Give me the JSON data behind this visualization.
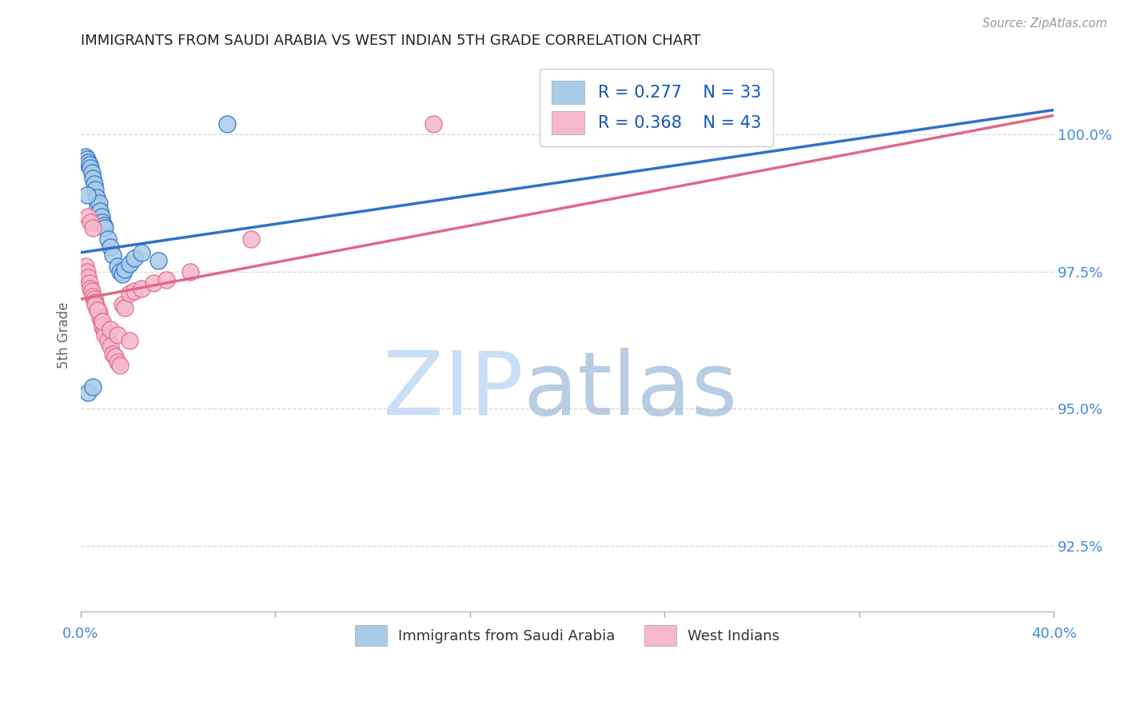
{
  "title": "IMMIGRANTS FROM SAUDI ARABIA VS WEST INDIAN 5TH GRADE CORRELATION CHART",
  "source": "Source: ZipAtlas.com",
  "ylabel": "5th Grade",
  "ytick_labels": [
    "92.5%",
    "95.0%",
    "97.5%",
    "100.0%"
  ],
  "ytick_values": [
    92.5,
    95.0,
    97.5,
    100.0
  ],
  "xlim": [
    0.0,
    40.0
  ],
  "ylim": [
    91.3,
    101.4
  ],
  "color_saudi": "#a8cce8",
  "color_west": "#f5b8cc",
  "line_color_saudi": "#3070c8",
  "line_color_west": "#e06888",
  "background_color": "#ffffff",
  "grid_color": "#d8d8d8",
  "title_color": "#222222",
  "source_color": "#999999",
  "axis_label_color": "#4488dd",
  "saudi_x": [
    0.15,
    0.2,
    0.25,
    0.3,
    0.35,
    0.4,
    0.45,
    0.5,
    0.55,
    0.6,
    0.65,
    0.7,
    0.75,
    0.8,
    0.85,
    0.9,
    0.95,
    1.0,
    1.1,
    1.2,
    1.3,
    1.5,
    1.6,
    1.7,
    1.8,
    2.0,
    2.2,
    2.5,
    3.2,
    0.25,
    0.3,
    0.5,
    6.0
  ],
  "saudi_y": [
    99.5,
    99.6,
    99.55,
    99.5,
    99.45,
    99.4,
    99.3,
    99.2,
    99.1,
    99.0,
    98.85,
    98.7,
    98.75,
    98.6,
    98.5,
    98.4,
    98.35,
    98.3,
    98.1,
    97.95,
    97.8,
    97.6,
    97.5,
    97.45,
    97.55,
    97.65,
    97.75,
    97.85,
    97.7,
    98.9,
    95.3,
    95.4,
    100.2
  ],
  "west_x": [
    0.1,
    0.2,
    0.25,
    0.3,
    0.35,
    0.4,
    0.45,
    0.5,
    0.55,
    0.6,
    0.65,
    0.7,
    0.75,
    0.8,
    0.85,
    0.9,
    0.95,
    1.0,
    1.1,
    1.2,
    1.3,
    1.4,
    1.5,
    1.6,
    1.7,
    1.8,
    2.0,
    2.2,
    2.5,
    3.0,
    3.5,
    4.5,
    7.0,
    14.5,
    0.3,
    0.4,
    0.5,
    0.6,
    0.7,
    0.9,
    1.2,
    1.5,
    2.0
  ],
  "west_y": [
    97.5,
    97.6,
    97.5,
    97.4,
    97.3,
    97.2,
    97.15,
    97.05,
    97.0,
    96.95,
    96.85,
    96.8,
    96.75,
    96.65,
    96.6,
    96.5,
    96.45,
    96.35,
    96.25,
    96.15,
    96.0,
    95.95,
    95.85,
    95.8,
    96.9,
    96.85,
    97.1,
    97.15,
    97.2,
    97.3,
    97.35,
    97.5,
    98.1,
    100.2,
    98.5,
    98.4,
    98.3,
    96.9,
    96.8,
    96.6,
    96.45,
    96.35,
    96.25
  ],
  "saudi_line_x0": 0.0,
  "saudi_line_y0": 97.85,
  "saudi_line_x1": 40.0,
  "saudi_line_y1": 100.45,
  "west_line_x0": 0.0,
  "west_line_y0": 97.0,
  "west_line_x1": 40.0,
  "west_line_y1": 100.35,
  "watermark_zip_color": "#c8dff5",
  "watermark_atlas_color": "#9ab8d8"
}
